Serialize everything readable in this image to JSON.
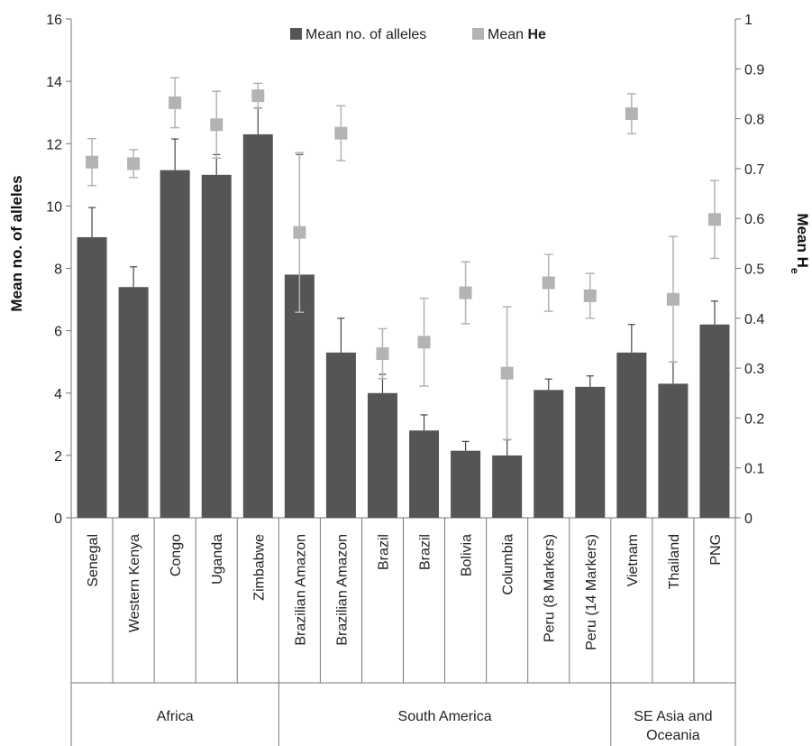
{
  "chart_data": {
    "type": "bar",
    "categories": [
      "Senegal",
      "Western Kenya",
      "Congo",
      "Uganda",
      "Zimbabwe",
      "Brazilian Amazon",
      "Brazilian Amazon",
      "Brazil",
      "Brazil",
      "Bolivia",
      "Columbia",
      "Peru (8 Markers)",
      "Peru (14 Markers)",
      "Vietnam",
      "Thailand",
      "PNG"
    ],
    "groups": [
      {
        "label": "Africa",
        "count": 5
      },
      {
        "label": "South America",
        "count": 8
      },
      {
        "label": "SE Asia and Oceania",
        "count": 3
      }
    ],
    "series": [
      {
        "name": "Mean no. of alleles",
        "kind": "bar",
        "axis": "left",
        "color": "#555555",
        "values": [
          9.0,
          7.4,
          11.15,
          11.0,
          12.3,
          7.8,
          5.3,
          4.0,
          2.8,
          2.15,
          2.0,
          4.1,
          4.2,
          5.3,
          4.3,
          6.2
        ],
        "error": [
          0.95,
          0.65,
          1.0,
          0.65,
          0.85,
          3.85,
          1.1,
          0.6,
          0.5,
          0.3,
          0.5,
          0.35,
          0.35,
          0.9,
          0.7,
          0.75
        ]
      },
      {
        "name": "Mean He",
        "kind": "marker",
        "axis": "right",
        "color": "#b3b3b3",
        "values": [
          0.713,
          0.71,
          0.832,
          0.788,
          0.846,
          0.572,
          0.771,
          0.329,
          0.352,
          0.451,
          0.29,
          0.471,
          0.445,
          0.81,
          0.438,
          0.598
        ],
        "error": [
          0.047,
          0.028,
          0.05,
          0.067,
          0.025,
          0.16,
          0.055,
          0.05,
          0.088,
          0.062,
          0.133,
          0.057,
          0.045,
          0.04,
          0.126,
          0.078
        ]
      }
    ],
    "yleft": {
      "label": "Mean no. of alleles",
      "ylim": [
        0,
        16
      ],
      "ticks": [
        0,
        2,
        4,
        6,
        8,
        10,
        12,
        14,
        16
      ]
    },
    "yright": {
      "label_main": "Mean H",
      "label_sub": "e",
      "ylim": [
        0,
        1
      ],
      "ticks": [
        "0",
        "0.1",
        "0.2",
        "0.3",
        "0.4",
        "0.5",
        "0.6",
        "0.7",
        "0.8",
        "0.9",
        "1"
      ]
    },
    "legend": {
      "position": "top-center",
      "items": [
        {
          "label": "Mean no. of alleles",
          "color": "#555555",
          "shape": "square"
        },
        {
          "label_prefix": "Mean ",
          "label_bold": "He",
          "color": "#b3b3b3",
          "shape": "square"
        }
      ]
    },
    "grid": false
  }
}
